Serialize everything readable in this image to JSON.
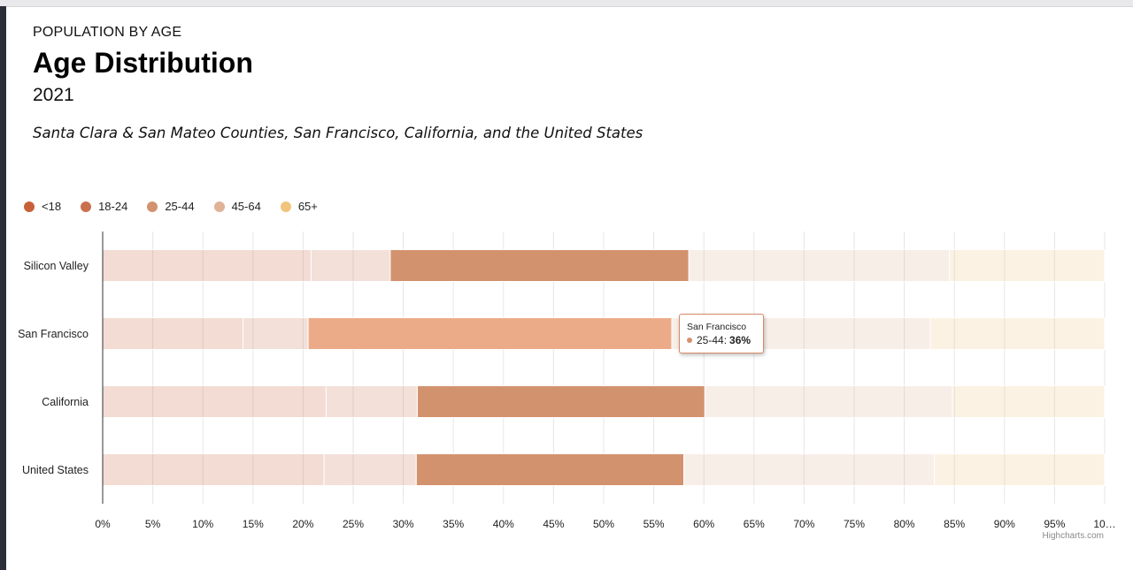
{
  "header": {
    "eyebrow": "POPULATION BY AGE",
    "title": "Age Distribution",
    "year": "2021",
    "subtitle": "Santa Clara & San Mateo Counties, San Francisco, California, and the United States"
  },
  "credits": "Highcharts.com",
  "tooltip": {
    "category": "San Francisco",
    "series": "25-44",
    "value": "36%"
  },
  "chart_data": {
    "type": "bar",
    "stacking": "percent",
    "orientation": "horizontal",
    "categories": [
      "Silicon Valley",
      "San Francisco",
      "California",
      "United States"
    ],
    "series": [
      {
        "name": "<18",
        "color": "#c8613a",
        "values": [
          20.8,
          14.0,
          22.3,
          22.1
        ]
      },
      {
        "name": "18-24",
        "color": "#c9714f",
        "values": [
          7.9,
          6.5,
          9.1,
          9.2
        ]
      },
      {
        "name": "25-44",
        "color": "#d3926e",
        "values": [
          29.8,
          36.3,
          28.7,
          26.7
        ]
      },
      {
        "name": "45-64",
        "color": "#dfb398",
        "values": [
          26.0,
          25.8,
          24.7,
          25.0
        ]
      },
      {
        "name": "65+",
        "color": "#f1c47e",
        "values": [
          15.5,
          17.4,
          15.2,
          17.0
        ]
      }
    ],
    "highlight": {
      "category": "San Francisco",
      "series": "25-44",
      "color": "#ecab88"
    },
    "xaxis": {
      "min": 0,
      "max": 100,
      "tick_labels": [
        "0%",
        "5%",
        "10%",
        "15%",
        "20%",
        "25%",
        "30%",
        "35%",
        "40%",
        "45%",
        "50%",
        "55%",
        "60%",
        "65%",
        "70%",
        "75%",
        "80%",
        "85%",
        "90%",
        "95%",
        "10…"
      ]
    },
    "grid": true,
    "legend_position": "top-left"
  }
}
